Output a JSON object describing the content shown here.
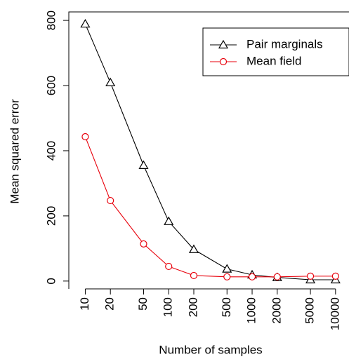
{
  "chart_data": {
    "type": "line",
    "x_label": "Number of samples",
    "y_label": "Mean squared error",
    "x": [
      10,
      20,
      50,
      100,
      200,
      500,
      1000,
      2000,
      5000,
      10000
    ],
    "xscale": "log",
    "series": [
      {
        "name": "Pair marginals",
        "color": "#000000",
        "marker": "triangle",
        "values": [
          789,
          609,
          355,
          183,
          97,
          37,
          19,
          11,
          4,
          4
        ]
      },
      {
        "name": "Mean field",
        "color": "#e8000b",
        "marker": "circle",
        "values": [
          443,
          247,
          114,
          45,
          17,
          13,
          13,
          13,
          15,
          15
        ]
      }
    ],
    "xlim": [
      6.35,
      14500
    ],
    "ylim": [
      -24,
      826
    ],
    "xticks": [
      10,
      20,
      50,
      100,
      200,
      500,
      1000,
      2000,
      5000,
      10000
    ],
    "yticks": [
      0,
      200,
      400,
      600,
      800
    ],
    "legend": "top-right"
  }
}
